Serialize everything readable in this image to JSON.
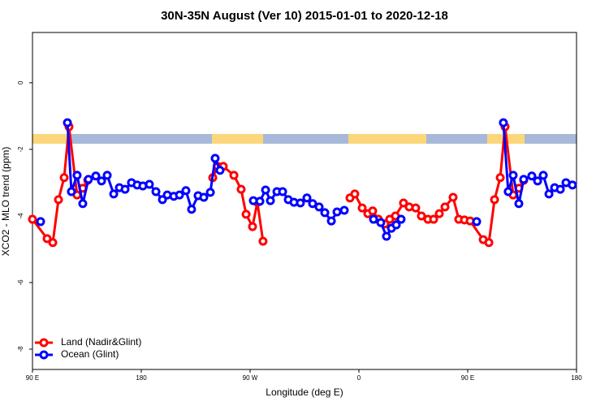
{
  "chart_data": {
    "type": "line",
    "title": "30N-35N August (Ver 10)   2015-01-01 to 2020-12-18",
    "x_label": "Longitude (deg E)",
    "y_label": "XCO2 - MLO trend (ppm)",
    "xlim": [
      90,
      540
    ],
    "xticks": [
      {
        "value": 90,
        "label": "90 E"
      },
      180,
      {
        "value": 270,
        "label": "90 W"
      },
      {
        "value": 360,
        "label": "0"
      },
      {
        "value": 450,
        "label": "90 E"
      },
      {
        "value": 540,
        "label": "180"
      }
    ],
    "ylim": [
      -8.61,
      1.51
    ],
    "yticks": [
      0,
      -2,
      -4,
      -6,
      -8
    ],
    "legend": "bottom-left",
    "series": [
      {
        "name": "Land (Nadir&Glint)",
        "color": "#ff0000",
        "x": [
          90,
          102.1,
          106.8,
          111.5,
          116.2,
          120.2,
          126.9,
          131.6,
          135.7,
          239.1,
          243.1,
          247.8,
          256.6,
          262.6,
          266.7,
          272,
          276,
          280.7,
          352.6,
          356.6,
          362.7,
          367.4,
          371.4,
          376.1,
          381.5,
          385.5,
          390.2,
          396.9,
          401.6,
          407,
          411.7,
          417.1,
          421.8,
          426.5,
          431.2,
          437.9,
          442.6,
          447.3,
          452,
          462.8,
          467.5,
          472.2,
          476.9,
          480.9,
          487.6,
          492.3,
          496.3
        ],
        "values": [
          -4.1,
          -4.68,
          -4.8,
          -3.51,
          -2.85,
          -1.32,
          -3.37,
          -3.17,
          -2.93,
          -2.85,
          -2.51,
          -2.51,
          -2.78,
          -3.2,
          -3.95,
          -4.32,
          -3.59,
          -4.76,
          -3.46,
          -3.34,
          -3.76,
          -3.93,
          -3.85,
          -4.1,
          -4.24,
          -4.1,
          -4.0,
          -3.61,
          -3.73,
          -3.76,
          -4.0,
          -4.1,
          -4.1,
          -3.93,
          -3.73,
          -3.44,
          -4.1,
          -4.12,
          -4.15,
          -4.71,
          -4.8,
          -3.51,
          -2.85,
          -1.32,
          -3.37,
          -3.17,
          -2.93
        ]
      },
      {
        "name": "Ocean (Glint)",
        "color": "#0000ff",
        "x": [
          96.7,
          118.9,
          122.2,
          126.9,
          131.6,
          136.3,
          142.4,
          147.1,
          151.8,
          157.2,
          161.9,
          166.6,
          171.9,
          176.6,
          181.3,
          186.7,
          192.1,
          197.5,
          201.5,
          206.9,
          211.6,
          216.9,
          221.6,
          227,
          231.7,
          237.1,
          241.1,
          245.1,
          272.7,
          278.1,
          282.8,
          286.8,
          292.2,
          296.9,
          301.6,
          306.3,
          311.6,
          317,
          321.7,
          327.1,
          331.8,
          337.2,
          341.9,
          347.9,
          372.1,
          378.1,
          382.8,
          386.9,
          390.9,
          394.9,
          457.4,
          479.5,
          483.5,
          487.6,
          492.3,
          496.3,
          503,
          507.8,
          512.5,
          517.2,
          521.9,
          526.6,
          531.3,
          536.6
        ],
        "values": [
          -4.17,
          -1.2,
          -3.27,
          -2.78,
          -3.63,
          -2.9,
          -2.8,
          -2.95,
          -2.78,
          -3.34,
          -3.15,
          -3.2,
          -3.0,
          -3.07,
          -3.1,
          -3.05,
          -3.27,
          -3.51,
          -3.37,
          -3.41,
          -3.37,
          -3.24,
          -3.8,
          -3.39,
          -3.44,
          -3.29,
          -2.27,
          -2.63,
          -3.54,
          -3.56,
          -3.22,
          -3.54,
          -3.27,
          -3.27,
          -3.51,
          -3.59,
          -3.61,
          -3.46,
          -3.63,
          -3.73,
          -3.9,
          -4.15,
          -3.88,
          -3.83,
          -4.1,
          -4.2,
          -4.61,
          -4.37,
          -4.27,
          -4.1,
          -4.17,
          -1.2,
          -3.27,
          -2.78,
          -3.63,
          -2.9,
          -2.8,
          -2.95,
          -2.78,
          -3.34,
          -3.15,
          -3.2,
          -3.0,
          -3.07
        ]
      }
    ]
  }
}
